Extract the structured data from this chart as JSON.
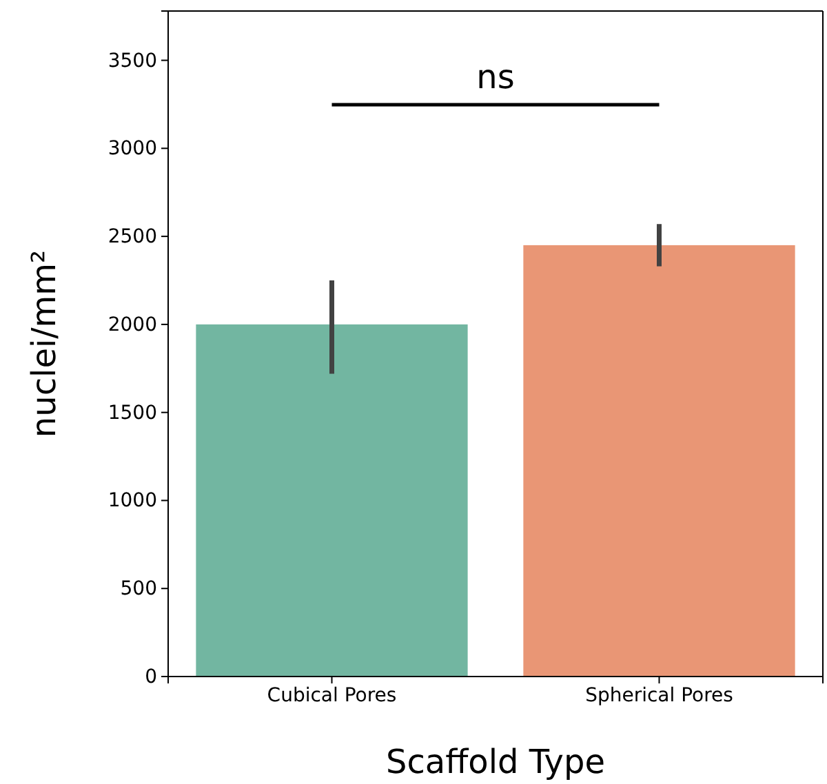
{
  "chart_data": {
    "type": "bar",
    "xlabel": "Scaffold Type",
    "ylabel": "nuclei/mm²",
    "categories": [
      "Cubical Pores",
      "Spherical Pores"
    ],
    "values": [
      2000,
      2450
    ],
    "colors": [
      "#72b6a1",
      "#e99675"
    ],
    "errors": [
      [
        1720,
        2250
      ],
      [
        2330,
        2570
      ]
    ],
    "ylim": [
      0,
      3780
    ],
    "yticks": [
      0,
      500,
      1000,
      1500,
      2000,
      2500,
      3000,
      3500
    ],
    "annotations": [
      "ns"
    ],
    "grid": false
  }
}
